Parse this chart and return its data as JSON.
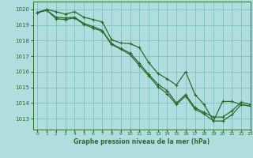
{
  "title": "Graphe pression niveau de la mer (hPa)",
  "bg_color": "#b0dede",
  "grid_color": "#80c0c0",
  "line_color": "#2d6b2d",
  "xlim": [
    -0.5,
    23
  ],
  "ylim": [
    1012.3,
    1020.5
  ],
  "yticks": [
    1013,
    1014,
    1015,
    1016,
    1017,
    1018,
    1019,
    1020
  ],
  "xticks": [
    0,
    1,
    2,
    3,
    4,
    5,
    6,
    7,
    8,
    9,
    10,
    11,
    12,
    13,
    14,
    15,
    16,
    17,
    18,
    19,
    20,
    21,
    22,
    23
  ],
  "series": [
    [
      1019.8,
      1020.0,
      1019.85,
      1019.7,
      1019.85,
      1019.5,
      1019.35,
      1019.2,
      1018.05,
      1017.85,
      1017.8,
      1017.55,
      1016.6,
      1015.9,
      1015.55,
      1015.15,
      1016.0,
      1014.55,
      1013.9,
      1012.85,
      1014.1,
      1014.1,
      1013.9,
      1013.8
    ],
    [
      1019.8,
      1019.95,
      1019.5,
      1019.45,
      1019.5,
      1019.1,
      1018.9,
      1018.65,
      1017.8,
      1017.5,
      1017.2,
      1016.55,
      1015.85,
      1015.2,
      1014.8,
      1014.0,
      1014.55,
      1013.7,
      1013.4,
      1013.1,
      1013.1,
      1013.5,
      1014.05,
      1013.9
    ],
    [
      1019.8,
      1019.95,
      1019.4,
      1019.35,
      1019.45,
      1019.05,
      1018.8,
      1018.6,
      1017.75,
      1017.45,
      1017.1,
      1016.4,
      1015.75,
      1015.05,
      1014.6,
      1013.9,
      1014.45,
      1013.6,
      1013.3,
      1012.85,
      1012.85,
      1013.25,
      1013.9,
      1013.8
    ]
  ]
}
